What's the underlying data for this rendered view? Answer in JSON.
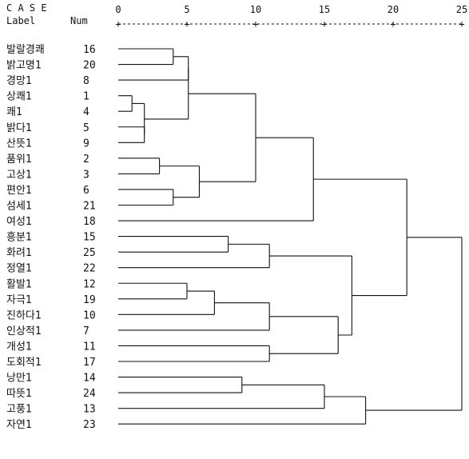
{
  "chart_data": {
    "type": "dendrogram",
    "header": {
      "case_title": "C A S E",
      "label_col": "Label",
      "num_col": "Num"
    },
    "axis_ticks": [
      0,
      5,
      10,
      15,
      20,
      25
    ],
    "axis_range": [
      0,
      25
    ],
    "leaves": [
      {
        "label": "발랄경쾌",
        "num": "16"
      },
      {
        "label": "밝고명1",
        "num": "20"
      },
      {
        "label": "경망1",
        "num": "8"
      },
      {
        "label": "상쾌1",
        "num": "1"
      },
      {
        "label": "쾌1",
        "num": "4"
      },
      {
        "label": "밝다1",
        "num": "5"
      },
      {
        "label": "산뜻1",
        "num": "9"
      },
      {
        "label": "품위1",
        "num": "2"
      },
      {
        "label": "고상1",
        "num": "3"
      },
      {
        "label": "편안1",
        "num": "6"
      },
      {
        "label": "섬세1",
        "num": "21"
      },
      {
        "label": "여성1",
        "num": "18"
      },
      {
        "label": "흥분1",
        "num": "15"
      },
      {
        "label": "화려1",
        "num": "25"
      },
      {
        "label": "정열1",
        "num": "22"
      },
      {
        "label": "활발1",
        "num": "12"
      },
      {
        "label": "자극1",
        "num": "19"
      },
      {
        "label": "진하다1",
        "num": "10"
      },
      {
        "label": "인상적1",
        "num": "7"
      },
      {
        "label": "개성1",
        "num": "11"
      },
      {
        "label": "도회적1",
        "num": "17"
      },
      {
        "label": "낭만1",
        "num": "14"
      },
      {
        "label": "따뜻1",
        "num": "24"
      },
      {
        "label": "고풍1",
        "num": "13"
      },
      {
        "label": "자연1",
        "num": "23"
      }
    ],
    "merges": [
      {
        "id": "m_3_4",
        "a": 3,
        "b": 4,
        "height": 1.0
      },
      {
        "id": "m_0_1",
        "a": 0,
        "b": 1,
        "height": 4.0
      },
      {
        "id": "m_5_6",
        "a": 5,
        "b": 6,
        "height": 1.9
      },
      {
        "id": "m_m34_m56",
        "a": "m_3_4",
        "b": "m_m56",
        "height": 1.9
      },
      {
        "id": "m_m01_2",
        "a": "m_0_1",
        "b": 2,
        "height": 5.1
      },
      {
        "id": "m_top1",
        "a": "m_m01_2",
        "b": "m_m34_m56",
        "height": 5.1
      },
      {
        "id": "m_7_8",
        "a": 7,
        "b": 8,
        "height": 3.0
      },
      {
        "id": "m_9_10",
        "a": 9,
        "b": 10,
        "height": 4.0
      },
      {
        "id": "m_grpB",
        "a": "m_7_8",
        "b": "m_9_10",
        "height": 5.9
      },
      {
        "id": "m_AB",
        "a": "m_top1",
        "b": "m_grpB",
        "height": 10.0
      },
      {
        "id": "m_ABC",
        "a": "m_AB",
        "b": 11,
        "height": 14.2
      },
      {
        "id": "m_12_13",
        "a": 12,
        "b": 13,
        "height": 8.0
      },
      {
        "id": "m_1213_14",
        "a": "m_12_13",
        "b": 14,
        "height": 11.0
      },
      {
        "id": "m_15_16",
        "a": 15,
        "b": 16,
        "height": 5.0
      },
      {
        "id": "m_1516_17",
        "a": "m_15_16",
        "b": 17,
        "height": 7.0
      },
      {
        "id": "m_D_18",
        "a": "m_1516_17",
        "b": 18,
        "height": 11.0
      },
      {
        "id": "m_19_20",
        "a": 19,
        "b": 20,
        "height": 11.0
      },
      {
        "id": "m_DE",
        "a": "m_D_18",
        "b": "m_19_20",
        "height": 16.0
      },
      {
        "id": "m_CDE",
        "a": "m_1213_14",
        "b": "m_DE",
        "height": 17.0
      },
      {
        "id": "m_21_22",
        "a": 21,
        "b": 22,
        "height": 9.0
      },
      {
        "id": "m_F_23",
        "a": "m_21_22",
        "b": 23,
        "height": 15.0
      },
      {
        "id": "m_F_24",
        "a": "m_F_23",
        "b": 24,
        "height": 18.0
      },
      {
        "id": "m_left_mid",
        "a": "m_ABC",
        "b": "m_CDE",
        "height": 21.0
      },
      {
        "id": "m_root",
        "a": "m_left_mid",
        "b": "m_F_24",
        "height": 25.0
      }
    ]
  }
}
